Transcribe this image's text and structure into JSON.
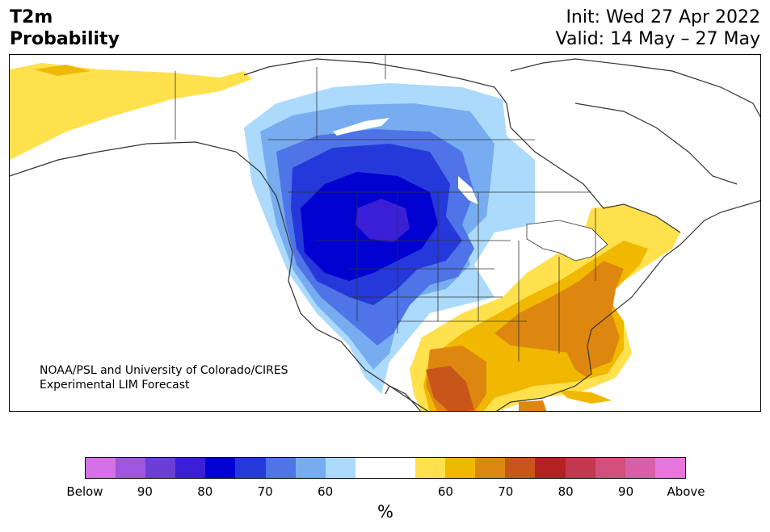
{
  "header": {
    "title_line1": "T2m",
    "title_line2": "Probability",
    "init": "Init: Wed 27 Apr 2022",
    "valid": "Valid: 14 May – 27 May"
  },
  "credit": {
    "line1": "NOAA/PSL and University of Colorado/CIRES",
    "line2": "Experimental LIM Forecast"
  },
  "colorbar": {
    "colors": [
      "#d570e6",
      "#9e55e0",
      "#6b3fd6",
      "#3a1fd6",
      "#0000d0",
      "#2538da",
      "#4e74e8",
      "#77acf0",
      "#abdafc",
      "#ffffff",
      "#ffffff",
      "#ffe14d",
      "#f0b800",
      "#de8710",
      "#c8561a",
      "#b22222",
      "#c2384e",
      "#d24f7c",
      "#da5ea8",
      "#e875dc"
    ],
    "tick_labels": [
      "Below",
      "90",
      "80",
      "70",
      "60",
      "60",
      "70",
      "80",
      "90",
      "Above"
    ],
    "unit_label": "%"
  },
  "map": {
    "description_colors": {
      "land_outline": "#333333",
      "below_60": "#abdafc",
      "above_60": "#ffe14d",
      "above_70": "#de8710"
    }
  }
}
